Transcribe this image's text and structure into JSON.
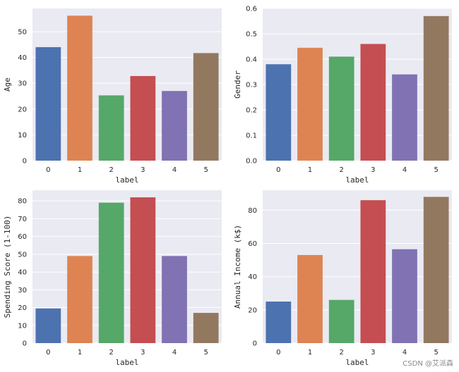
{
  "chart_data": [
    {
      "type": "bar",
      "xlabel": "label",
      "ylabel": "Age",
      "categories": [
        "0",
        "1",
        "2",
        "3",
        "4",
        "5"
      ],
      "values": [
        44.0,
        56.2,
        25.3,
        32.8,
        27.0,
        41.7
      ],
      "ylim": [
        0,
        59
      ],
      "yticks": [
        0,
        10,
        20,
        30,
        40,
        50
      ],
      "ytick_labels": [
        "0",
        "10",
        "20",
        "30",
        "40",
        "50"
      ],
      "grid": true
    },
    {
      "type": "bar",
      "xlabel": "label",
      "ylabel": "Gender",
      "categories": [
        "0",
        "1",
        "2",
        "3",
        "4",
        "5"
      ],
      "values": [
        0.38,
        0.445,
        0.41,
        0.46,
        0.34,
        0.57
      ],
      "ylim": [
        0,
        0.6
      ],
      "yticks": [
        0.0,
        0.1,
        0.2,
        0.3,
        0.4,
        0.5,
        0.6
      ],
      "ytick_labels": [
        "0.0",
        "0.1",
        "0.2",
        "0.3",
        "0.4",
        "0.5",
        "0.6"
      ],
      "grid": true
    },
    {
      "type": "bar",
      "xlabel": "label",
      "ylabel": "Spending Score (1-100)",
      "categories": [
        "0",
        "1",
        "2",
        "3",
        "4",
        "5"
      ],
      "values": [
        19.5,
        49.0,
        79.0,
        82.0,
        49.0,
        17.0
      ],
      "ylim": [
        0,
        86
      ],
      "yticks": [
        0,
        10,
        20,
        30,
        40,
        50,
        60,
        70,
        80
      ],
      "ytick_labels": [
        "0",
        "10",
        "20",
        "30",
        "40",
        "50",
        "60",
        "70",
        "80"
      ],
      "grid": true
    },
    {
      "type": "bar",
      "xlabel": "label",
      "ylabel": "Annual Income (k$)",
      "categories": [
        "0",
        "1",
        "2",
        "3",
        "4",
        "5"
      ],
      "values": [
        25.0,
        53.0,
        26.0,
        86.0,
        56.5,
        88.0
      ],
      "ylim": [
        0,
        92
      ],
      "yticks": [
        0,
        20,
        40,
        60,
        80
      ],
      "ytick_labels": [
        "0",
        "20",
        "40",
        "60",
        "80"
      ],
      "grid": true
    }
  ],
  "colors": [
    "#4c72b0",
    "#dd8452",
    "#55a868",
    "#c44e52",
    "#8172b3",
    "#937860"
  ],
  "watermark": "CSDN @艾派森"
}
